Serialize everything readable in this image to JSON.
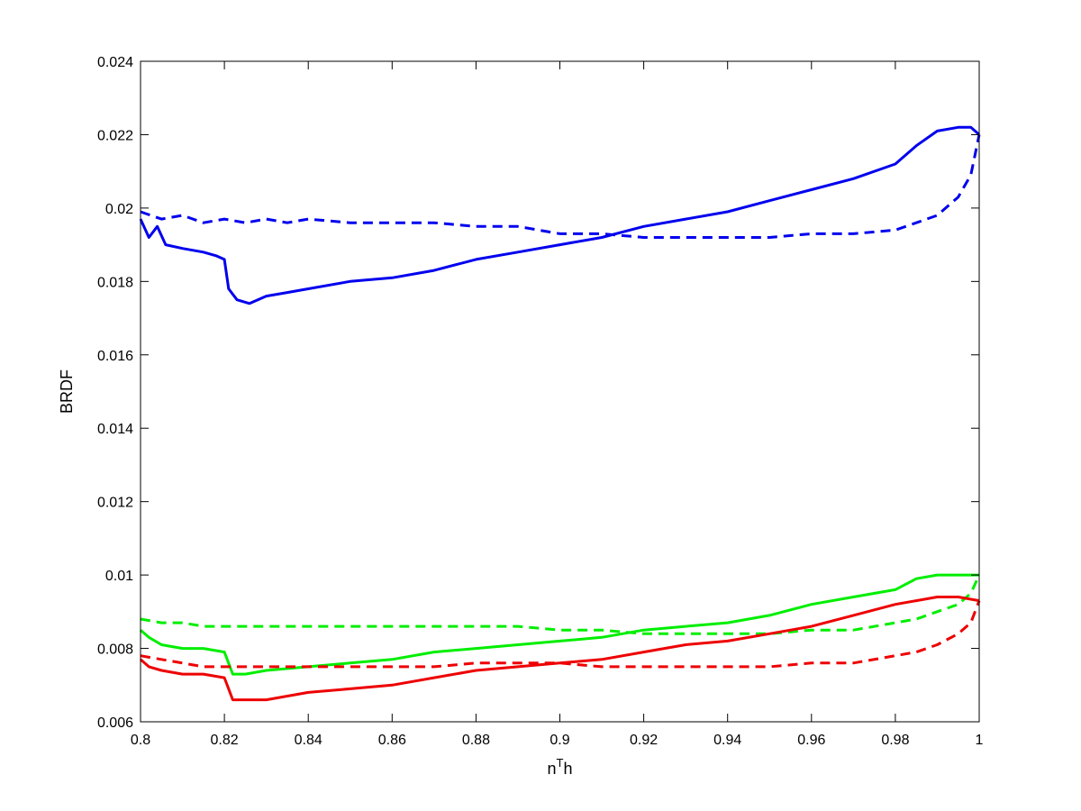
{
  "chart_data": {
    "type": "line",
    "title": "",
    "xlabel": {
      "base": "n",
      "sup": "T",
      "rest": "h"
    },
    "ylabel": "BRDF",
    "xlim": [
      0.8,
      1.0
    ],
    "ylim": [
      0.006,
      0.024
    ],
    "xticks": [
      0.8,
      0.82,
      0.84,
      0.86,
      0.88,
      0.9,
      0.92,
      0.94,
      0.96,
      0.98,
      1.0
    ],
    "xtick_labels": [
      "0.8",
      "0.82",
      "0.84",
      "0.86",
      "0.88",
      "0.9",
      "0.92",
      "0.94",
      "0.96",
      "0.98",
      "1"
    ],
    "yticks": [
      0.006,
      0.008,
      0.01,
      0.012,
      0.014,
      0.016,
      0.018,
      0.02,
      0.022,
      0.024
    ],
    "ytick_labels": [
      "0.006",
      "0.008",
      "0.01",
      "0.012",
      "0.014",
      "0.016",
      "0.018",
      "0.02",
      "0.022",
      "0.024"
    ],
    "grid": false,
    "legend": "none",
    "series": [
      {
        "color": "#0000ee",
        "style": "solid",
        "x": [
          0.8,
          0.802,
          0.804,
          0.806,
          0.81,
          0.815,
          0.818,
          0.82,
          0.821,
          0.823,
          0.826,
          0.83,
          0.835,
          0.84,
          0.85,
          0.86,
          0.87,
          0.88,
          0.89,
          0.9,
          0.91,
          0.92,
          0.93,
          0.94,
          0.95,
          0.96,
          0.97,
          0.98,
          0.985,
          0.99,
          0.995,
          0.998,
          1.0
        ],
        "y": [
          0.0197,
          0.0192,
          0.0195,
          0.019,
          0.0189,
          0.0188,
          0.0187,
          0.0186,
          0.0178,
          0.0175,
          0.0174,
          0.0176,
          0.0177,
          0.0178,
          0.018,
          0.0181,
          0.0183,
          0.0186,
          0.0188,
          0.019,
          0.0192,
          0.0195,
          0.0197,
          0.0199,
          0.0202,
          0.0205,
          0.0208,
          0.0212,
          0.0217,
          0.0221,
          0.0222,
          0.0222,
          0.022
        ]
      },
      {
        "color": "#0000ee",
        "style": "dashed",
        "x": [
          0.8,
          0.805,
          0.81,
          0.815,
          0.82,
          0.825,
          0.83,
          0.835,
          0.84,
          0.85,
          0.86,
          0.87,
          0.88,
          0.89,
          0.9,
          0.91,
          0.92,
          0.93,
          0.94,
          0.95,
          0.96,
          0.97,
          0.98,
          0.985,
          0.99,
          0.995,
          0.998,
          1.0
        ],
        "y": [
          0.0199,
          0.0197,
          0.0198,
          0.0196,
          0.0197,
          0.0196,
          0.0197,
          0.0196,
          0.0197,
          0.0196,
          0.0196,
          0.0196,
          0.0195,
          0.0195,
          0.0193,
          0.0193,
          0.0192,
          0.0192,
          0.0192,
          0.0192,
          0.0193,
          0.0193,
          0.0194,
          0.0196,
          0.0198,
          0.0203,
          0.0209,
          0.022
        ]
      },
      {
        "color": "#00ee00",
        "style": "solid",
        "x": [
          0.8,
          0.802,
          0.805,
          0.81,
          0.815,
          0.82,
          0.822,
          0.825,
          0.83,
          0.84,
          0.85,
          0.86,
          0.87,
          0.88,
          0.89,
          0.9,
          0.91,
          0.92,
          0.93,
          0.94,
          0.95,
          0.96,
          0.97,
          0.98,
          0.985,
          0.99,
          0.995,
          1.0
        ],
        "y": [
          0.0085,
          0.0083,
          0.0081,
          0.008,
          0.008,
          0.0079,
          0.0073,
          0.0073,
          0.0074,
          0.0075,
          0.0076,
          0.0077,
          0.0079,
          0.008,
          0.0081,
          0.0082,
          0.0083,
          0.0085,
          0.0086,
          0.0087,
          0.0089,
          0.0092,
          0.0094,
          0.0096,
          0.0099,
          0.01,
          0.01,
          0.01
        ]
      },
      {
        "color": "#00ee00",
        "style": "dashed",
        "x": [
          0.8,
          0.805,
          0.81,
          0.815,
          0.82,
          0.83,
          0.84,
          0.85,
          0.86,
          0.87,
          0.88,
          0.89,
          0.9,
          0.91,
          0.92,
          0.93,
          0.94,
          0.95,
          0.96,
          0.97,
          0.98,
          0.985,
          0.99,
          0.995,
          0.998,
          1.0
        ],
        "y": [
          0.0088,
          0.0087,
          0.0087,
          0.0086,
          0.0086,
          0.0086,
          0.0086,
          0.0086,
          0.0086,
          0.0086,
          0.0086,
          0.0086,
          0.0085,
          0.0085,
          0.0084,
          0.0084,
          0.0084,
          0.0084,
          0.0085,
          0.0085,
          0.0087,
          0.0088,
          0.009,
          0.0092,
          0.0095,
          0.01
        ]
      },
      {
        "color": "#ee0000",
        "style": "solid",
        "x": [
          0.8,
          0.802,
          0.805,
          0.81,
          0.815,
          0.82,
          0.822,
          0.825,
          0.83,
          0.84,
          0.85,
          0.86,
          0.87,
          0.88,
          0.89,
          0.9,
          0.91,
          0.92,
          0.93,
          0.94,
          0.95,
          0.96,
          0.97,
          0.98,
          0.985,
          0.99,
          0.995,
          1.0
        ],
        "y": [
          0.0077,
          0.0075,
          0.0074,
          0.0073,
          0.0073,
          0.0072,
          0.0066,
          0.0066,
          0.0066,
          0.0068,
          0.0069,
          0.007,
          0.0072,
          0.0074,
          0.0075,
          0.0076,
          0.0077,
          0.0079,
          0.0081,
          0.0082,
          0.0084,
          0.0086,
          0.0089,
          0.0092,
          0.0093,
          0.0094,
          0.0094,
          0.0093
        ]
      },
      {
        "color": "#ee0000",
        "style": "dashed",
        "x": [
          0.8,
          0.805,
          0.81,
          0.815,
          0.82,
          0.83,
          0.84,
          0.85,
          0.86,
          0.87,
          0.88,
          0.89,
          0.9,
          0.91,
          0.92,
          0.93,
          0.94,
          0.95,
          0.96,
          0.97,
          0.98,
          0.985,
          0.99,
          0.995,
          0.998,
          1.0
        ],
        "y": [
          0.0078,
          0.0077,
          0.0076,
          0.0075,
          0.0075,
          0.0075,
          0.0075,
          0.0075,
          0.0075,
          0.0075,
          0.0076,
          0.0076,
          0.0076,
          0.0075,
          0.0075,
          0.0075,
          0.0075,
          0.0075,
          0.0076,
          0.0076,
          0.0078,
          0.0079,
          0.0081,
          0.0084,
          0.0087,
          0.0093
        ]
      }
    ]
  }
}
